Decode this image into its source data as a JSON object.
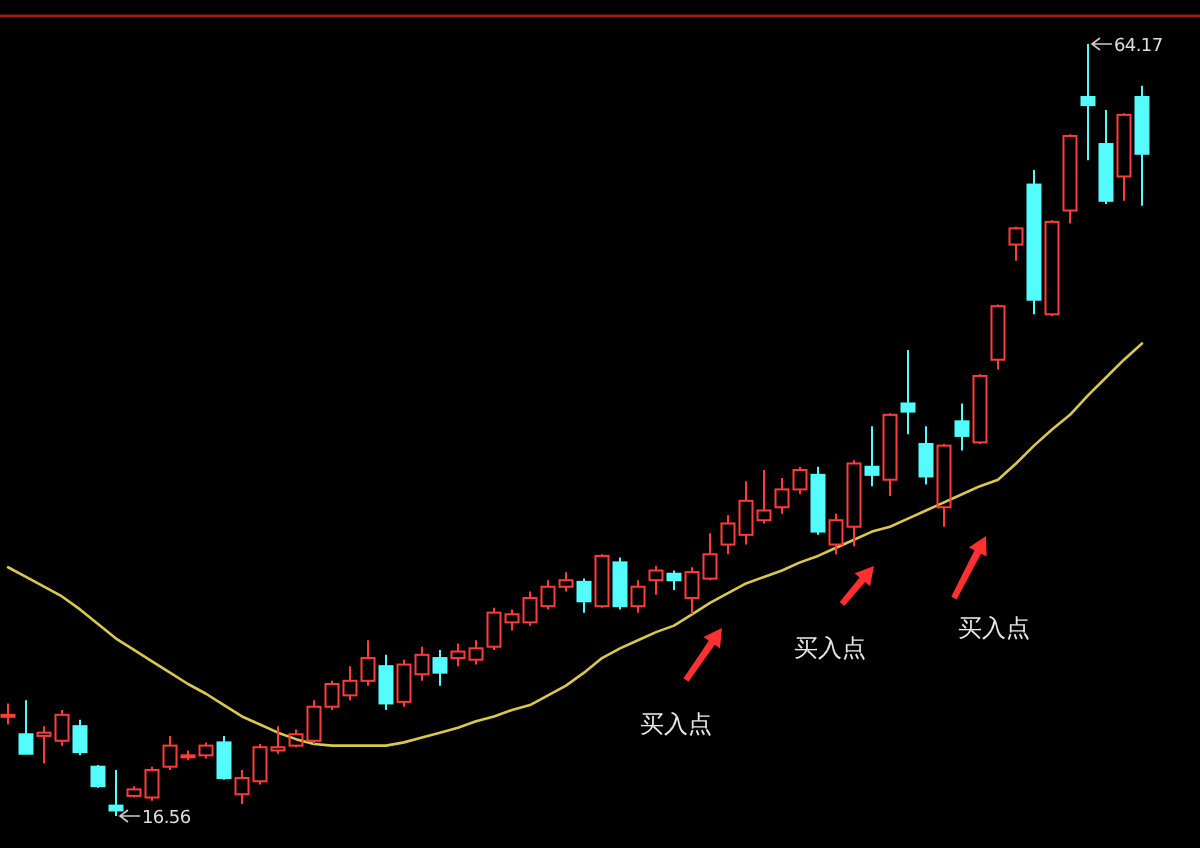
{
  "chart_data": {
    "type": "candlestick",
    "categories": [
      null,
      null,
      null,
      null,
      null,
      null,
      null,
      null,
      null,
      null,
      null,
      null,
      null,
      null,
      null,
      null,
      null,
      null,
      null,
      null,
      null,
      null,
      null,
      null,
      null,
      null,
      null,
      null,
      null,
      null,
      null,
      null,
      null,
      null,
      null,
      null,
      null,
      null,
      null,
      null,
      null,
      null,
      null,
      null,
      null,
      null,
      null,
      null,
      null,
      null,
      null,
      null,
      null,
      null,
      null,
      null,
      null,
      null,
      null,
      null,
      null,
      null,
      null,
      null
    ],
    "ohlc": [
      [
        22.7,
        23.5,
        22.2,
        22.8
      ],
      [
        21.6,
        23.7,
        20.4,
        20.4
      ],
      [
        21.5,
        22.1,
        19.8,
        21.7
      ],
      [
        21.2,
        23.1,
        20.9,
        22.8
      ],
      [
        22.1,
        22.5,
        20.3,
        20.5
      ],
      [
        19.6,
        19.7,
        18.3,
        18.4
      ],
      [
        17.2,
        19.4,
        16.56,
        16.9
      ],
      [
        17.8,
        18.4,
        17.7,
        18.2
      ],
      [
        17.7,
        19.6,
        17.5,
        19.4
      ],
      [
        19.6,
        21.5,
        19.4,
        20.9
      ],
      [
        20.2,
        20.6,
        20.0,
        20.3
      ],
      [
        20.3,
        21.1,
        20.1,
        20.9
      ],
      [
        21.1,
        21.5,
        18.8,
        18.9
      ],
      [
        17.9,
        19.4,
        17.3,
        18.9
      ],
      [
        18.7,
        21.0,
        18.5,
        20.8
      ],
      [
        20.6,
        22.1,
        20.4,
        20.8
      ],
      [
        20.9,
        21.9,
        20.8,
        21.6
      ],
      [
        21.2,
        23.7,
        21.0,
        23.3
      ],
      [
        23.3,
        24.9,
        23.1,
        24.7
      ],
      [
        24.0,
        25.8,
        23.7,
        24.9
      ],
      [
        24.9,
        27.4,
        24.6,
        26.3
      ],
      [
        25.8,
        26.5,
        23.1,
        23.5
      ],
      [
        23.6,
        26.2,
        23.3,
        25.9
      ],
      [
        25.3,
        27.0,
        24.9,
        26.5
      ],
      [
        26.3,
        26.8,
        24.6,
        25.4
      ],
      [
        26.3,
        27.2,
        25.8,
        26.7
      ],
      [
        26.2,
        27.4,
        25.9,
        26.9
      ],
      [
        27.0,
        29.4,
        26.8,
        29.1
      ],
      [
        28.5,
        29.3,
        28.0,
        29.0
      ],
      [
        28.5,
        30.4,
        28.3,
        30.0
      ],
      [
        29.5,
        31.1,
        29.3,
        30.7
      ],
      [
        30.7,
        31.6,
        30.4,
        31.1
      ],
      [
        31.0,
        31.2,
        29.1,
        29.8
      ],
      [
        29.5,
        32.7,
        29.4,
        32.6
      ],
      [
        32.2,
        32.5,
        29.3,
        29.5
      ],
      [
        29.5,
        31.1,
        29.1,
        30.7
      ],
      [
        31.1,
        32.0,
        30.2,
        31.7
      ],
      [
        31.5,
        31.7,
        30.5,
        31.1
      ],
      [
        30.0,
        31.9,
        29.0,
        31.6
      ],
      [
        31.2,
        34.0,
        31.1,
        32.7
      ],
      [
        33.3,
        35.1,
        32.7,
        34.6
      ],
      [
        33.9,
        37.2,
        33.3,
        36.0
      ],
      [
        34.8,
        37.9,
        34.6,
        35.4
      ],
      [
        35.6,
        37.4,
        35.2,
        36.7
      ],
      [
        36.7,
        38.1,
        36.4,
        37.9
      ],
      [
        37.6,
        38.1,
        33.9,
        34.1
      ],
      [
        33.3,
        35.2,
        32.7,
        34.8
      ],
      [
        34.4,
        38.5,
        33.2,
        38.3
      ],
      [
        38.1,
        40.6,
        36.9,
        37.6
      ],
      [
        37.3,
        41.4,
        36.3,
        41.3
      ],
      [
        42.0,
        45.3,
        40.1,
        41.5
      ],
      [
        39.5,
        40.6,
        37.0,
        37.5
      ],
      [
        35.6,
        39.5,
        34.4,
        39.4
      ],
      [
        40.9,
        42.0,
        39.1,
        40.0
      ],
      [
        39.6,
        43.8,
        39.5,
        43.7
      ],
      [
        44.7,
        48.1,
        44.1,
        48.0
      ],
      [
        51.8,
        52.9,
        50.8,
        52.8
      ],
      [
        55.5,
        56.4,
        47.5,
        48.4
      ],
      [
        47.5,
        53.3,
        47.4,
        53.2
      ],
      [
        53.9,
        58.6,
        53.1,
        58.5
      ],
      [
        60.9,
        64.17,
        57.0,
        60.4
      ],
      [
        58.0,
        60.1,
        54.3,
        54.5
      ],
      [
        56.0,
        59.9,
        54.5,
        59.8
      ],
      [
        60.9,
        61.6,
        54.2,
        57.4
      ]
    ],
    "series": [
      {
        "type": "line",
        "color": "#d8c850",
        "values": [
          31.9,
          31.3,
          30.7,
          30.1,
          29.3,
          28.4,
          27.5,
          26.8,
          26.1,
          25.4,
          24.7,
          24.1,
          23.4,
          22.7,
          22.2,
          21.7,
          21.3,
          21.0,
          20.9,
          20.9,
          20.9,
          20.9,
          21.1,
          21.4,
          21.7,
          22.0,
          22.4,
          22.7,
          23.1,
          23.4,
          24.0,
          24.6,
          25.4,
          26.3,
          26.9,
          27.4,
          27.9,
          28.3,
          29.0,
          29.7,
          30.3,
          30.9,
          31.3,
          31.7,
          32.2,
          32.6,
          33.1,
          33.6,
          34.1,
          34.4,
          34.9,
          35.4,
          35.9,
          36.4,
          36.9,
          37.3,
          38.3,
          39.4,
          40.4,
          41.3,
          42.5,
          43.6,
          44.7,
          45.7
        ]
      }
    ],
    "annotations": [
      "16.56",
      "64.17",
      "买入点",
      "买入点",
      "买入点"
    ]
  }
}
